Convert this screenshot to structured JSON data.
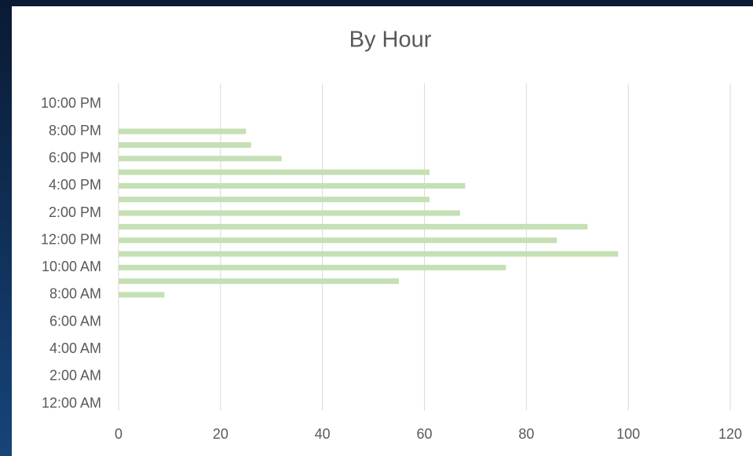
{
  "chart_data": {
    "type": "barh",
    "title": "By Hour",
    "categories": [
      "12:00 AM",
      null,
      "2:00 AM",
      null,
      "4:00 AM",
      null,
      "6:00 AM",
      null,
      "8:00 AM",
      null,
      "10:00 AM",
      null,
      "12:00 PM",
      null,
      "2:00 PM",
      null,
      "4:00 PM",
      null,
      "6:00 PM",
      null,
      "8:00 PM",
      null,
      "10:00 PM",
      null
    ],
    "values": [
      0,
      0,
      0,
      0,
      0,
      0,
      0,
      0,
      9,
      55,
      76,
      98,
      86,
      92,
      67,
      61,
      68,
      61,
      32,
      26,
      25,
      0,
      0,
      0
    ],
    "color": "#c5e0b4",
    "xlim": [
      0,
      120
    ],
    "xticks": [
      0,
      20,
      40,
      60,
      80,
      100,
      120
    ],
    "grid": true
  }
}
